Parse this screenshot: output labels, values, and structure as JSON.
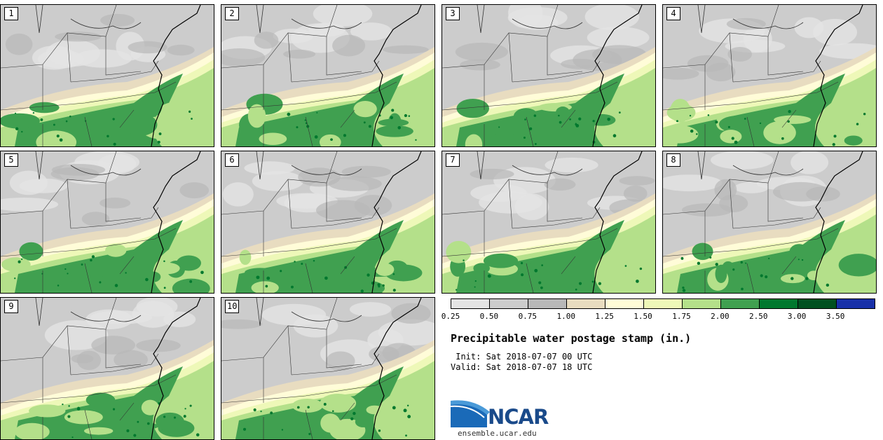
{
  "panels": [
    {
      "label": "1"
    },
    {
      "label": "2"
    },
    {
      "label": "3"
    },
    {
      "label": "4"
    },
    {
      "label": "5"
    },
    {
      "label": "6"
    },
    {
      "label": "7"
    },
    {
      "label": "8"
    },
    {
      "label": "9"
    },
    {
      "label": "10"
    }
  ],
  "colorbar": {
    "colors": [
      "#e4e4e4",
      "#cccccc",
      "#b8b8b8",
      "#e8dcc0",
      "#fffcd8",
      "#eef8b8",
      "#b4e08a",
      "#40a050",
      "#00782e",
      "#005020",
      "#1830a8"
    ],
    "ticks": [
      "0.25",
      "0.50",
      "0.75",
      "1.00",
      "1.25",
      "1.50",
      "1.75",
      "2.00",
      "2.50",
      "3.00",
      "3.50"
    ]
  },
  "title": "Precipitable water postage stamp (in.)",
  "init_line": " Init: Sat 2018-07-07 00 UTC",
  "valid_line": "Valid: Sat 2018-07-07 18 UTC",
  "logo": {
    "text": "NCAR",
    "brand_color": "#1a4a8a",
    "swoosh_color": "#1a6ab8"
  },
  "url": "ensemble.ucar.edu"
}
